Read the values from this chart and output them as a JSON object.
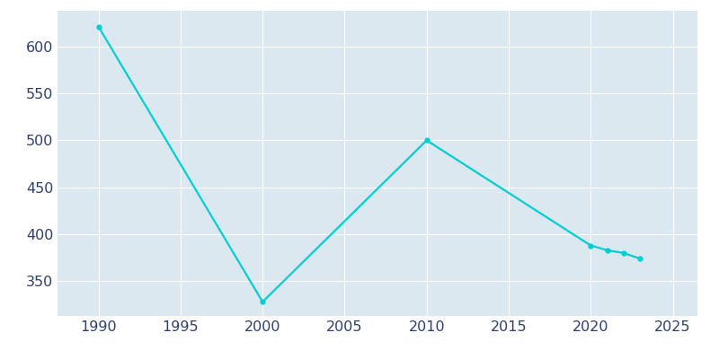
{
  "years": [
    1990,
    2000,
    2010,
    2020,
    2021,
    2022,
    2023
  ],
  "population": [
    621,
    328,
    500,
    388,
    383,
    380,
    374
  ],
  "line_color": "#00CED1",
  "marker_color": "#00CED1",
  "figure_background": "#ffffff",
  "plot_background": "#dce8f0",
  "grid_color": "#ffffff",
  "xlim": [
    1987.5,
    2026.5
  ],
  "ylim": [
    313,
    638
  ],
  "xticks": [
    1990,
    1995,
    2000,
    2005,
    2010,
    2015,
    2020,
    2025
  ],
  "yticks": [
    350,
    400,
    450,
    500,
    550,
    600
  ],
  "tick_label_color": "#2e3f6e",
  "tick_fontsize": 11.5,
  "marker_size": 3.5,
  "line_width": 1.6
}
